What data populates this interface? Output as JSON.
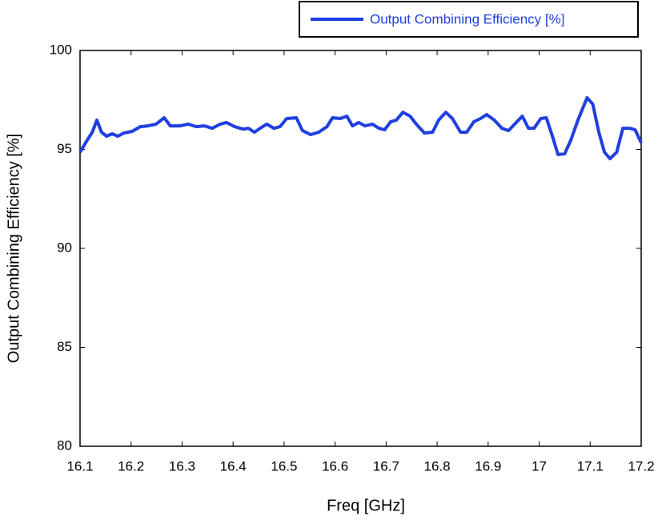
{
  "chart_data": {
    "type": "line",
    "x_label": "Freq [GHz]",
    "y_label": "Output Combining Efficiency [%]",
    "xlim": [
      16.1,
      17.2
    ],
    "xticks": [
      16.1,
      16.2,
      16.3,
      16.4,
      16.5,
      16.6,
      16.7,
      16.8,
      16.9,
      17,
      17.1,
      17.2
    ],
    "ylim": [
      80,
      100
    ],
    "yticks": [
      80,
      85,
      90,
      95,
      100
    ],
    "grid": false,
    "legend": "top-right",
    "series": [
      {
        "name": "Output Combining Efficiency [%]",
        "color": "#1f3fe0",
        "x": [
          16.1,
          16.111,
          16.124,
          16.133,
          16.142,
          16.152,
          16.163,
          16.174,
          16.186,
          16.202,
          16.218,
          16.233,
          16.249,
          16.265,
          16.277,
          16.296,
          16.312,
          16.328,
          16.343,
          16.359,
          16.375,
          16.387,
          16.403,
          16.419,
          16.43,
          16.442,
          16.453,
          16.466,
          16.48,
          16.492,
          16.505,
          16.524,
          16.536,
          16.552,
          16.568,
          16.584,
          16.595,
          16.61,
          16.623,
          16.634,
          16.646,
          16.659,
          16.673,
          16.686,
          16.697,
          16.709,
          16.72,
          16.733,
          16.747,
          16.759,
          16.775,
          16.791,
          16.803,
          16.817,
          16.83,
          16.846,
          16.858,
          16.872,
          16.885,
          16.897,
          16.912,
          16.927,
          16.94,
          16.952,
          16.967,
          16.979,
          16.99,
          17.003,
          17.014,
          17.026,
          17.037,
          17.05,
          17.062,
          17.076,
          17.094,
          17.105,
          17.117,
          17.128,
          17.139,
          17.152,
          17.164,
          17.178,
          17.188,
          17.2
        ],
        "values": [
          94.86,
          95.34,
          95.87,
          96.48,
          95.87,
          95.67,
          95.79,
          95.67,
          95.83,
          95.91,
          96.15,
          96.19,
          96.28,
          96.6,
          96.19,
          96.19,
          96.28,
          96.15,
          96.19,
          96.07,
          96.28,
          96.36,
          96.15,
          96.03,
          96.07,
          95.87,
          96.07,
          96.28,
          96.07,
          96.15,
          96.56,
          96.6,
          95.95,
          95.75,
          95.87,
          96.15,
          96.6,
          96.56,
          96.68,
          96.19,
          96.36,
          96.19,
          96.28,
          96.07,
          95.99,
          96.4,
          96.48,
          96.88,
          96.68,
          96.28,
          95.83,
          95.87,
          96.48,
          96.88,
          96.56,
          95.87,
          95.87,
          96.4,
          96.56,
          96.76,
          96.48,
          96.07,
          95.95,
          96.28,
          96.68,
          96.07,
          96.07,
          96.56,
          96.6,
          95.67,
          94.74,
          94.78,
          95.47,
          96.48,
          97.61,
          97.29,
          95.87,
          94.86,
          94.53,
          94.86,
          96.07,
          96.07,
          95.99,
          95.34
        ]
      }
    ]
  }
}
